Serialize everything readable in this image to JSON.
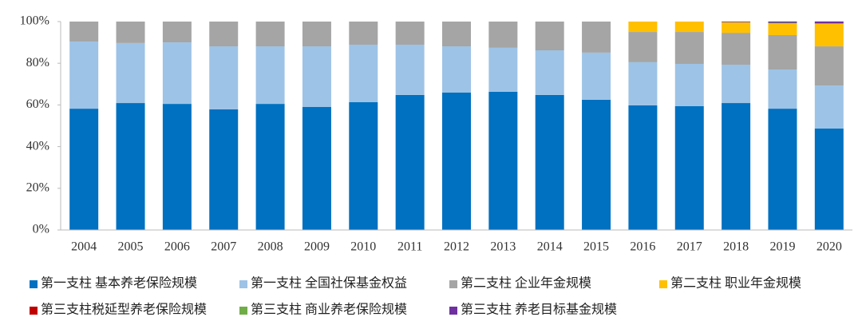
{
  "chart_data": {
    "type": "stacked_bar",
    "categories": [
      "2004",
      "2005",
      "2006",
      "2007",
      "2008",
      "2009",
      "2010",
      "2011",
      "2012",
      "2013",
      "2014",
      "2015",
      "2016",
      "2017",
      "2018",
      "2019",
      "2020"
    ],
    "series": [
      {
        "name": "第一支柱 基本养老保险规模",
        "color": "#0070c0",
        "values": [
          58.2,
          60.9,
          60.5,
          57.9,
          60.5,
          59.0,
          61.3,
          64.8,
          65.9,
          66.3,
          64.8,
          62.5,
          59.8,
          59.4,
          60.9,
          58.2,
          48.7
        ]
      },
      {
        "name": "第一支柱 全国社保基金权益",
        "color": "#9dc3e6",
        "values": [
          32.2,
          28.8,
          29.5,
          30.2,
          27.6,
          29.1,
          27.6,
          24.1,
          22.2,
          21.1,
          21.4,
          22.6,
          20.7,
          20.3,
          18.4,
          18.8,
          20.6
        ]
      },
      {
        "name": "第二支柱 企业年金规模",
        "color": "#a5a5a5",
        "values": [
          9.6,
          10.3,
          10.0,
          11.9,
          11.9,
          11.9,
          11.1,
          11.1,
          11.9,
          12.6,
          13.8,
          14.9,
          14.5,
          15.3,
          15.3,
          16.5,
          18.8
        ]
      },
      {
        "name": "第二支柱 职业年金规模",
        "color": "#ffc000",
        "values": [
          0,
          0,
          0,
          0,
          0,
          0,
          0,
          0,
          0,
          0,
          0,
          0,
          5.0,
          5.0,
          5.0,
          5.7,
          10.8
        ]
      },
      {
        "name": "第三支柱税延型养老保险规模",
        "color": "#c00000",
        "values": [
          0,
          0,
          0,
          0,
          0,
          0,
          0,
          0,
          0,
          0,
          0,
          0,
          0,
          0,
          0.03,
          0.03,
          0.05
        ]
      },
      {
        "name": "第三支柱 商业养老保险规模",
        "color": "#70ad47",
        "values": [
          0,
          0,
          0,
          0,
          0,
          0,
          0,
          0,
          0,
          0,
          0,
          0,
          0,
          0,
          0.1,
          0.2,
          0.2
        ]
      },
      {
        "name": "第三支柱 养老目标基金规模",
        "color": "#7030a0",
        "values": [
          0,
          0,
          0,
          0,
          0,
          0,
          0,
          0,
          0,
          0,
          0,
          0,
          0,
          0,
          0.3,
          0.6,
          0.9
        ]
      }
    ],
    "ylim": [
      0,
      100
    ],
    "yticks": [
      {
        "value": 0,
        "label": "0%"
      },
      {
        "value": 20,
        "label": "20%"
      },
      {
        "value": 40,
        "label": "40%"
      },
      {
        "value": 60,
        "label": "60%"
      },
      {
        "value": 80,
        "label": "80%"
      },
      {
        "value": 100,
        "label": "100%"
      }
    ],
    "legend": "bottom",
    "grid": false
  }
}
